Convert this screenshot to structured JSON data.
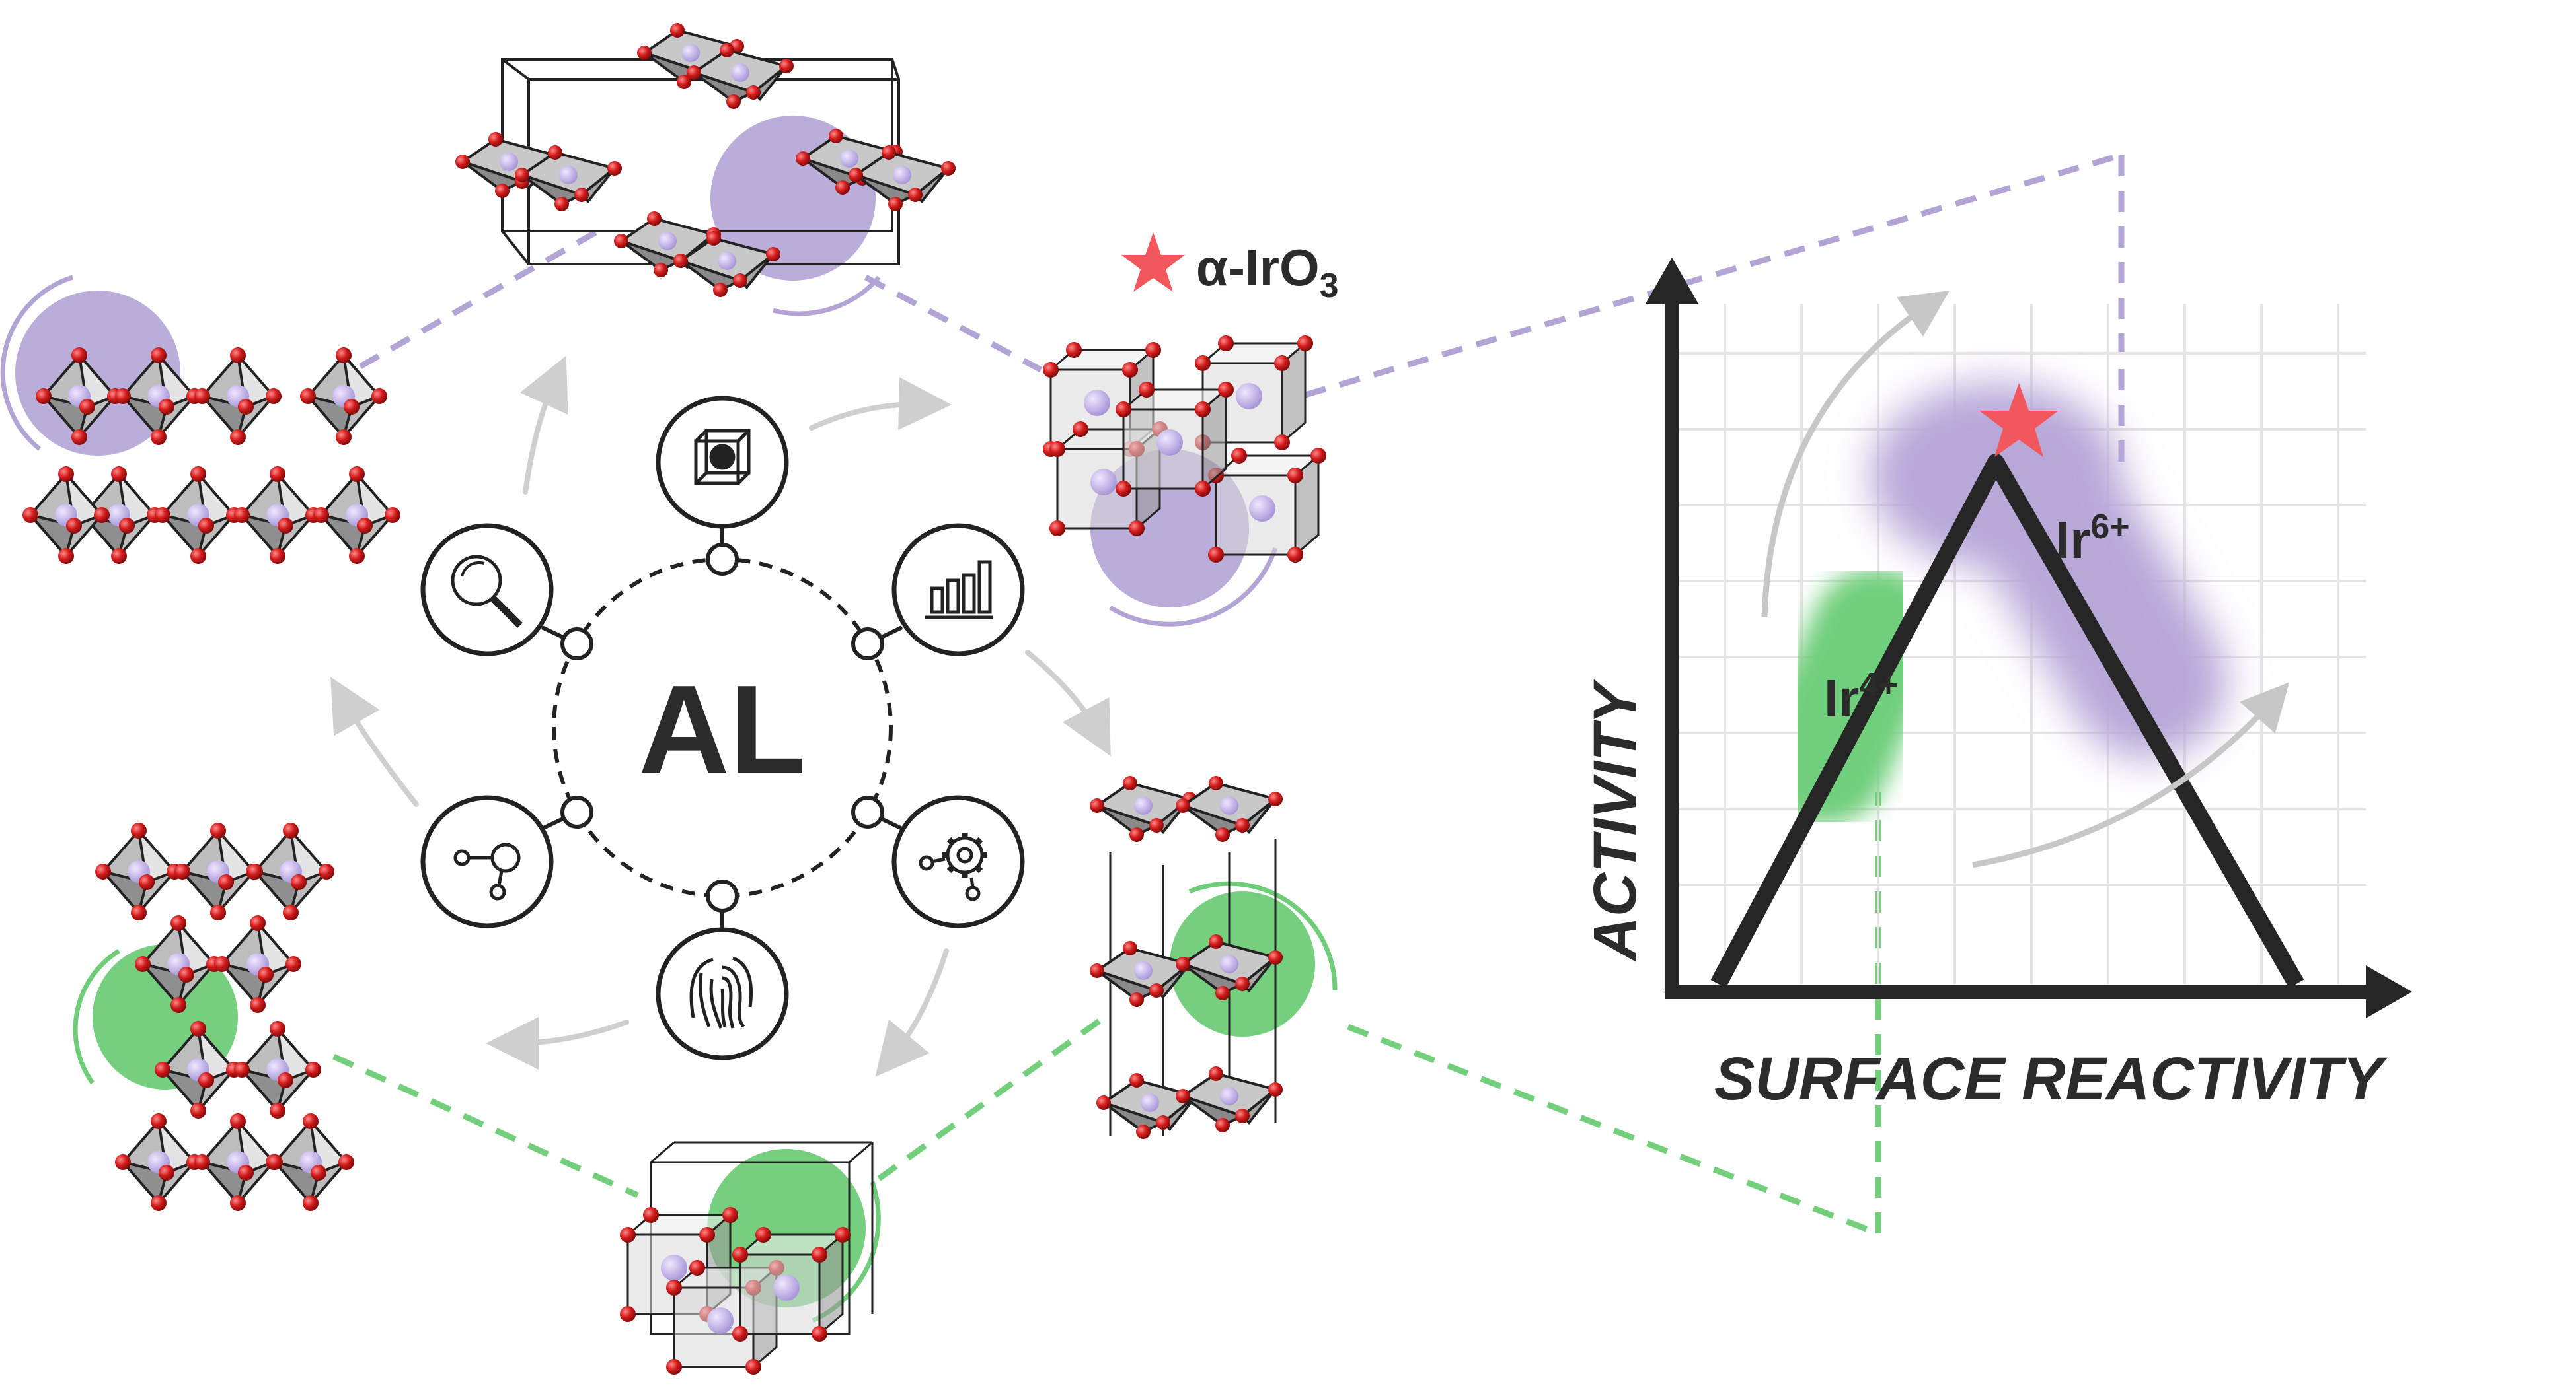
{
  "center_label": "AL",
  "compound_label": {
    "text": "α-IrO",
    "subscript": "3",
    "marker_icon": "star-icon"
  },
  "graph": {
    "y_axis_label": "ACTIVITY",
    "x_axis_label": "SURFACE REACTIVITY",
    "regions": [
      {
        "label": "Ir",
        "superscript": "4+",
        "color": "#6fcf7b"
      },
      {
        "label": "Ir",
        "superscript": "6+",
        "color": "#b7a8d8"
      }
    ],
    "star_color": "#f2575e"
  },
  "workflow_icons": [
    {
      "name": "crystal-cube-icon"
    },
    {
      "name": "bar-chart-icon"
    },
    {
      "name": "gear-network-icon"
    },
    {
      "name": "fingerprint-icon"
    },
    {
      "name": "node-graph-icon"
    },
    {
      "name": "magnifier-icon"
    }
  ],
  "colors": {
    "purple": "#b3a4d6",
    "green": "#6fcc78",
    "red_atom": "#d11f1f",
    "dark": "#2b2b2b",
    "arrow_gray": "#cfcfcf"
  }
}
